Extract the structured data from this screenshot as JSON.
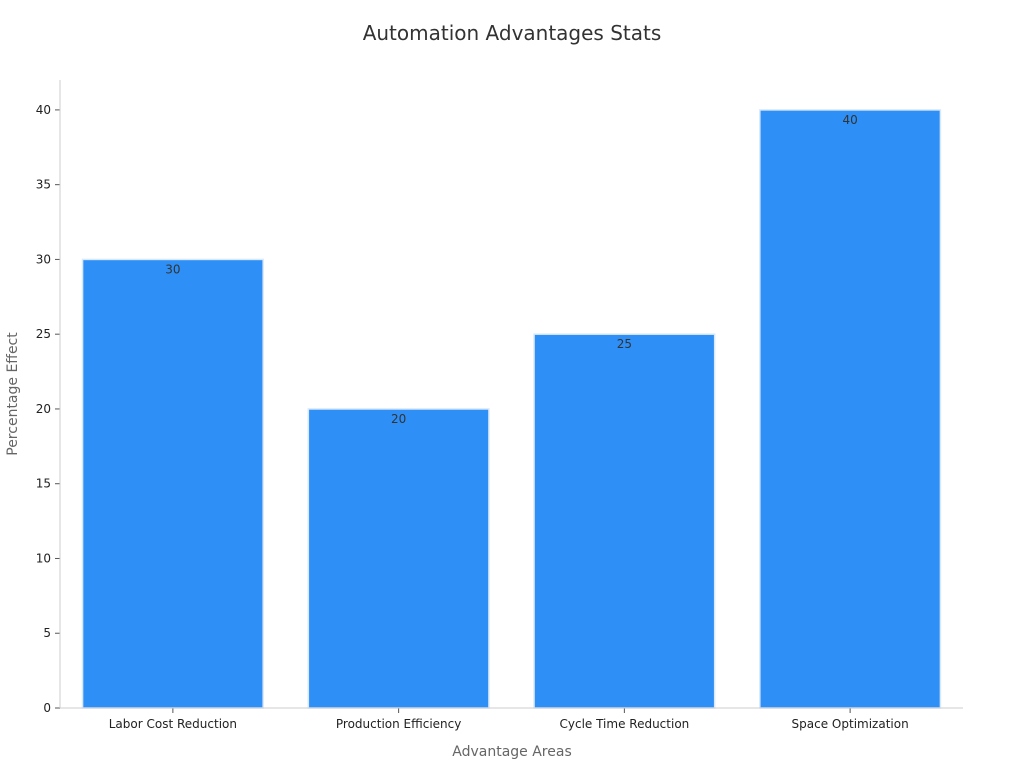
{
  "chart_data": {
    "type": "bar",
    "title": "Automation Advantages Stats",
    "xlabel": "Advantage Areas",
    "ylabel": "Percentage Effect",
    "categories": [
      "Labor Cost Reduction",
      "Production Efficiency",
      "Cycle Time Reduction",
      "Space Optimization"
    ],
    "values": [
      30,
      20,
      25,
      40
    ],
    "data_labels": [
      "30",
      "20",
      "25",
      "40"
    ],
    "ylim": [
      0,
      42
    ],
    "yticks": [
      0,
      5,
      10,
      15,
      20,
      25,
      30,
      35,
      40
    ],
    "grid": false,
    "legend": "none",
    "colors": {
      "bar": "#2e90f6",
      "bar_edge": "#d9e8fb"
    }
  }
}
